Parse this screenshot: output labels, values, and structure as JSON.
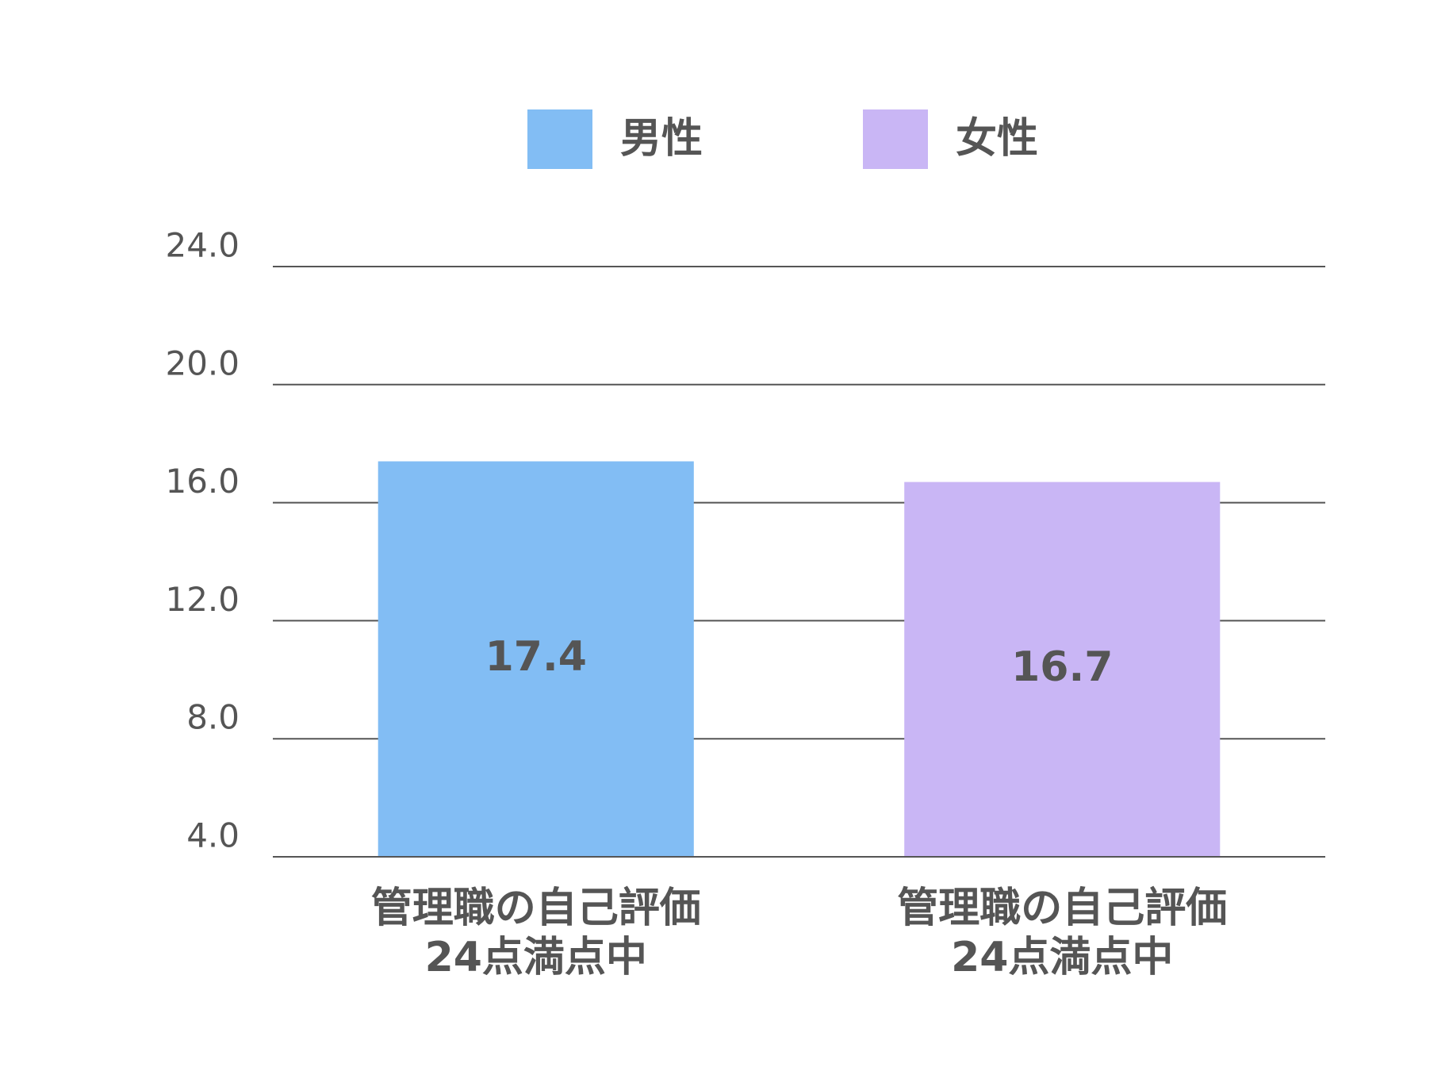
{
  "chart_data": {
    "type": "bar",
    "categories": [
      "管理職の自己評価\n24点満点中",
      "管理職の自己評価\n24点満点中"
    ],
    "series": [
      {
        "name": "男性",
        "color": "#82bdf4",
        "values": [
          17.4,
          null
        ]
      },
      {
        "name": "女性",
        "color": "#c9b6f5",
        "values": [
          null,
          16.7
        ]
      }
    ],
    "ylim": [
      4,
      24
    ],
    "yticks": [
      {
        "value": 4,
        "label": "4.0"
      },
      {
        "value": 8,
        "label": "8.0"
      },
      {
        "value": 12,
        "label": "12.0"
      },
      {
        "value": 16,
        "label": "16.0"
      },
      {
        "value": 20,
        "label": "20.0"
      },
      {
        "value": 24,
        "label": "24.0"
      }
    ],
    "grid": true,
    "legend": "top"
  }
}
